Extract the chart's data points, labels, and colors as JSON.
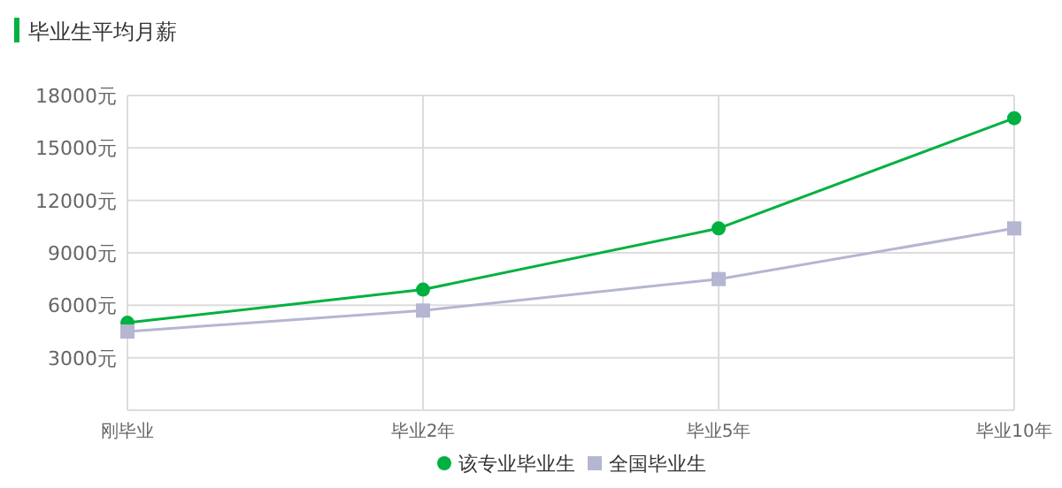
{
  "chart_data": {
    "type": "line",
    "title": "毕业生平均月薪",
    "categories": [
      "刚毕业",
      "毕业2年",
      "毕业5年",
      "毕业10年"
    ],
    "series": [
      {
        "name": "该专业毕业生",
        "color": "#00b140",
        "marker": "circle",
        "values": [
          5000,
          6900,
          10400,
          16700
        ]
      },
      {
        "name": "全国毕业生",
        "color": "#b4b6d2",
        "marker": "square",
        "values": [
          4500,
          5700,
          7500,
          10400
        ]
      }
    ],
    "ylim": [
      0,
      18000
    ],
    "yticks": [
      {
        "value": 0,
        "label": null
      },
      {
        "value": 3000,
        "label": "3000元"
      },
      {
        "value": 6000,
        "label": "6000元"
      },
      {
        "value": 9000,
        "label": "9000元"
      },
      {
        "value": 12000,
        "label": "12000元"
      },
      {
        "value": 15000,
        "label": "15000元"
      },
      {
        "value": 18000,
        "label": "18000元"
      }
    ],
    "grid": true,
    "legend": "bottom"
  }
}
